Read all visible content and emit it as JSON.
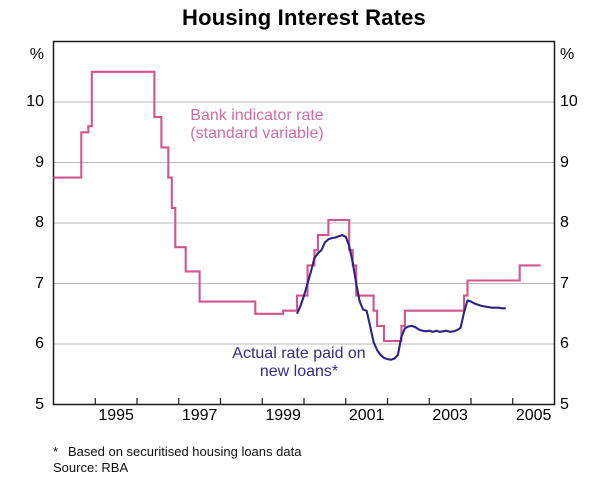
{
  "figure": {
    "footnote_marker": "*",
    "footnote_text": "Based on securitised housing loans data",
    "source": "Source: RBA"
  },
  "chart_data": {
    "type": "line",
    "title": "Housing Interest Rates",
    "ylabel": "%",
    "ylabel_right": "%",
    "xlabel": "",
    "ylim": [
      5,
      11
    ],
    "y_ticks": [
      5,
      6,
      7,
      8,
      9,
      10
    ],
    "grid_y": [
      6,
      7,
      8,
      9,
      10
    ],
    "grid_color": "#b9b9b9",
    "frame_color": "#1c1c1c",
    "x_domain": [
      1994.0,
      2006.0
    ],
    "x_tick_years": [
      1995,
      1996,
      1997,
      1998,
      1999,
      2000,
      2001,
      2002,
      2003,
      2004,
      2005
    ],
    "x_ticklabels": [
      "1995",
      "1997",
      "1999",
      "2001",
      "2003",
      "2005"
    ],
    "x_ticklabel_positions": [
      1995.5,
      1997.5,
      1999.5,
      2001.5,
      2003.5,
      2005.5
    ],
    "legends": [
      {
        "line1": "Bank indicator rate",
        "line2": "(standard variable)"
      },
      {
        "line1": "Actual rate paid on",
        "line2": "new loans*"
      }
    ],
    "series": [
      {
        "name": "Bank indicator rate (standard variable)",
        "style": "step",
        "color": "#d1568e",
        "label_color": "#d06da2",
        "end": "2005-08",
        "changes": [
          [
            "1994-01",
            8.75
          ],
          [
            "1994-09",
            9.5
          ],
          [
            "1994-11",
            9.6
          ],
          [
            "1994-12",
            10.5
          ],
          [
            "1996-06",
            9.75
          ],
          [
            "1996-08",
            9.25
          ],
          [
            "1996-10",
            8.75
          ],
          [
            "1996-11",
            8.25
          ],
          [
            "1996-12",
            7.6
          ],
          [
            "1997-03",
            7.2
          ],
          [
            "1997-07",
            6.7
          ],
          [
            "1998-11",
            6.5
          ],
          [
            "1999-07",
            6.55
          ],
          [
            "1999-11",
            6.8
          ],
          [
            "2000-02",
            7.3
          ],
          [
            "2000-04",
            7.55
          ],
          [
            "2000-05",
            7.8
          ],
          [
            "2000-08",
            8.05
          ],
          [
            "2001-02",
            7.55
          ],
          [
            "2001-03",
            7.3
          ],
          [
            "2001-04",
            6.8
          ],
          [
            "2001-09",
            6.55
          ],
          [
            "2001-10",
            6.3
          ],
          [
            "2001-12",
            6.05
          ],
          [
            "2002-05",
            6.3
          ],
          [
            "2002-06",
            6.55
          ],
          [
            "2003-11",
            6.8
          ],
          [
            "2003-12",
            7.05
          ],
          [
            "2005-03",
            7.3
          ]
        ]
      },
      {
        "name": "Actual rate paid on new loans*",
        "style": "line",
        "color": "#2c2484",
        "label_color": "#332b8a",
        "points": [
          [
            "1999-11",
            6.5
          ],
          [
            "1999-12",
            6.63
          ],
          [
            "2000-01",
            6.8
          ],
          [
            "2000-02",
            7.0
          ],
          [
            "2000-03",
            7.2
          ],
          [
            "2000-04",
            7.42
          ],
          [
            "2000-05",
            7.5
          ],
          [
            "2000-06",
            7.55
          ],
          [
            "2000-07",
            7.68
          ],
          [
            "2000-08",
            7.73
          ],
          [
            "2000-09",
            7.75
          ],
          [
            "2000-10",
            7.76
          ],
          [
            "2000-11",
            7.78
          ],
          [
            "2000-12",
            7.8
          ],
          [
            "2001-01",
            7.77
          ],
          [
            "2001-02",
            7.62
          ],
          [
            "2001-03",
            7.35
          ],
          [
            "2001-04",
            7.0
          ],
          [
            "2001-05",
            6.7
          ],
          [
            "2001-06",
            6.57
          ],
          [
            "2001-07",
            6.55
          ],
          [
            "2001-08",
            6.3
          ],
          [
            "2001-09",
            6.03
          ],
          [
            "2001-10",
            5.9
          ],
          [
            "2001-11",
            5.82
          ],
          [
            "2001-12",
            5.77
          ],
          [
            "2002-01",
            5.75
          ],
          [
            "2002-02",
            5.74
          ],
          [
            "2002-03",
            5.76
          ],
          [
            "2002-04",
            5.82
          ],
          [
            "2002-05",
            6.12
          ],
          [
            "2002-06",
            6.26
          ],
          [
            "2002-07",
            6.29
          ],
          [
            "2002-08",
            6.3
          ],
          [
            "2002-09",
            6.28
          ],
          [
            "2002-10",
            6.24
          ],
          [
            "2002-11",
            6.22
          ],
          [
            "2002-12",
            6.21
          ],
          [
            "2003-01",
            6.22
          ],
          [
            "2003-02",
            6.2
          ],
          [
            "2003-03",
            6.22
          ],
          [
            "2003-04",
            6.2
          ],
          [
            "2003-05",
            6.21
          ],
          [
            "2003-06",
            6.22
          ],
          [
            "2003-07",
            6.2
          ],
          [
            "2003-08",
            6.21
          ],
          [
            "2003-09",
            6.23
          ],
          [
            "2003-10",
            6.27
          ],
          [
            "2003-11",
            6.52
          ],
          [
            "2003-12",
            6.72
          ],
          [
            "2004-01",
            6.7
          ],
          [
            "2004-02",
            6.67
          ],
          [
            "2004-03",
            6.65
          ],
          [
            "2004-04",
            6.63
          ],
          [
            "2004-05",
            6.62
          ],
          [
            "2004-06",
            6.61
          ],
          [
            "2004-07",
            6.6
          ],
          [
            "2004-08",
            6.6
          ],
          [
            "2004-09",
            6.6
          ],
          [
            "2004-10",
            6.59
          ],
          [
            "2004-11",
            6.59
          ]
        ]
      }
    ]
  }
}
